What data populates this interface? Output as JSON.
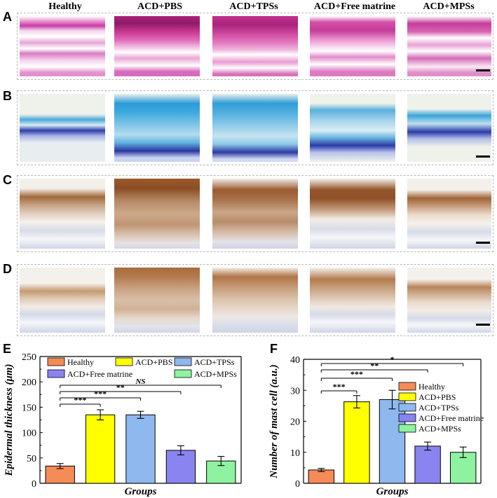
{
  "figure": {
    "columns": [
      "Healthy",
      "ACD+PBS",
      "ACD+TPSs",
      "ACD+Free matrine",
      "ACD+MPSs"
    ],
    "panel_letters": [
      "A",
      "B",
      "C",
      "D",
      "E",
      "F"
    ]
  },
  "chart_data": [
    {
      "type": "bar",
      "panel": "E",
      "categories": [
        "Healthy",
        "ACD+PBS",
        "ACD+TPSs",
        "ACD+Free matrine",
        "ACD+MPSs"
      ],
      "values": [
        34,
        135,
        135,
        65,
        44
      ],
      "errors": [
        5,
        10,
        7,
        9,
        9
      ],
      "colors": [
        "#F58B57",
        "#FFFF00",
        "#8FB8EE",
        "#8A84F0",
        "#8EF2A0"
      ],
      "xlabel": "Groups",
      "ylabel": "Epidermal thickness (μm)",
      "ylim": [
        0,
        250
      ],
      "yticks": [
        0,
        50,
        100,
        150,
        200,
        250
      ],
      "legend_placement": "top",
      "significance": [
        {
          "from": 0,
          "to": 1,
          "label": "***"
        },
        {
          "from": 0,
          "to": 2,
          "label": "***"
        },
        {
          "from": 0,
          "to": 3,
          "label": "**"
        },
        {
          "from": 0,
          "to": 4,
          "label": "NS"
        }
      ]
    },
    {
      "type": "bar",
      "panel": "F",
      "categories": [
        "Healthy",
        "ACD+PBS",
        "ACD+TPSs",
        "ACD+Free matrine",
        "ACD+MPSs"
      ],
      "values": [
        4.3,
        26.3,
        27,
        12,
        10
      ],
      "errors": [
        0.5,
        2,
        3,
        1.3,
        1.7
      ],
      "colors": [
        "#F58B57",
        "#FFFF00",
        "#8FB8EE",
        "#8A84F0",
        "#8EF2A0"
      ],
      "xlabel": "Groups",
      "ylabel": "Number of mast cell (a.u.)",
      "ylim": [
        0,
        40
      ],
      "yticks": [
        0,
        10,
        20,
        30,
        40
      ],
      "legend_placement": "right",
      "significance": [
        {
          "from": 0,
          "to": 1,
          "label": "***"
        },
        {
          "from": 0,
          "to": 2,
          "label": "***"
        },
        {
          "from": 0,
          "to": 3,
          "label": "**"
        },
        {
          "from": 0,
          "to": 4,
          "label": "*"
        }
      ]
    }
  ]
}
